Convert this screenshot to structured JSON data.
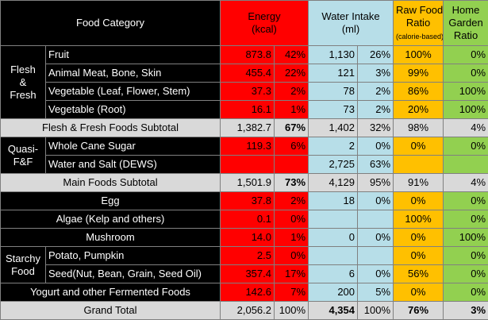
{
  "header": {
    "category": "Food Category",
    "energy_line1": "Energy",
    "energy_line2": "(kcal)",
    "water_line1": "Water Intake",
    "water_line2": "(ml)",
    "raw_line1": "Raw Food",
    "raw_line2": "Ratio",
    "raw_line3": "(calorie-based)",
    "home_line1": "Home",
    "home_line2": "Garden",
    "home_line3": "Ratio"
  },
  "groups": {
    "flesh_line1": "Flesh",
    "flesh_line2": "&",
    "flesh_line3": "Fresh",
    "quasi_line1": "Quasi-",
    "quasi_line2": "F&F",
    "starchy_line1": "Starchy",
    "starchy_line2": "Food"
  },
  "rows": {
    "fruit": {
      "name": "Fruit",
      "energy": "873.8",
      "energy_pct": "42%",
      "water": "1,130",
      "water_pct": "26%",
      "raw": "100%",
      "home": "0%"
    },
    "animal": {
      "name": "Animal Meat, Bone, Skin",
      "energy": "455.4",
      "energy_pct": "22%",
      "water": "121",
      "water_pct": "3%",
      "raw": "99%",
      "home": "0%"
    },
    "veg_leaf": {
      "name": "Vegetable (Leaf, Flower, Stem)",
      "energy": "37.3",
      "energy_pct": "2%",
      "water": "78",
      "water_pct": "2%",
      "raw": "86%",
      "home": "100%"
    },
    "veg_root": {
      "name": "Vegetable (Root)",
      "energy": "16.1",
      "energy_pct": "1%",
      "water": "73",
      "water_pct": "2%",
      "raw": "20%",
      "home": "100%"
    },
    "ff_subtotal": {
      "name": "Flesh & Fresh Foods Subtotal",
      "energy": "1,382.7",
      "energy_pct": "67%",
      "water": "1,402",
      "water_pct": "32%",
      "raw": "98%",
      "home": "4%"
    },
    "sugar": {
      "name": "Whole Cane Sugar",
      "energy": "119.3",
      "energy_pct": "6%",
      "water": "2",
      "water_pct": "0%",
      "raw": "0%",
      "home": "0%"
    },
    "water_salt": {
      "name": "Water and Salt (DEWS)",
      "water": "2,725",
      "water_pct": "63%"
    },
    "main_subtotal": {
      "name": "Main Foods Subtotal",
      "energy": "1,501.9",
      "energy_pct": "73%",
      "water": "4,129",
      "water_pct": "95%",
      "raw": "91%",
      "home": "4%"
    },
    "egg": {
      "name": "Egg",
      "energy": "37.8",
      "energy_pct": "2%",
      "water": "18",
      "water_pct": "0%",
      "raw": "0%",
      "home": "0%"
    },
    "algae": {
      "name": "Algae (Kelp and others)",
      "energy": "0.1",
      "energy_pct": "0%",
      "raw": "100%",
      "home": "0%"
    },
    "mushroom": {
      "name": "Mushroom",
      "energy": "14.0",
      "energy_pct": "1%",
      "water": "0",
      "water_pct": "0%",
      "raw": "0%",
      "home": "100%"
    },
    "potato": {
      "name": "Potato, Pumpkin",
      "energy": "2.5",
      "energy_pct": "0%",
      "raw": "0%",
      "home": "0%"
    },
    "seed": {
      "name": "Seed(Nut, Bean, Grain, Seed Oil)",
      "energy": "357.4",
      "energy_pct": "17%",
      "water": "6",
      "water_pct": "0%",
      "raw": "56%",
      "home": "0%"
    },
    "yogurt": {
      "name": "Yogurt and other Fermented Foods",
      "energy": "142.6",
      "energy_pct": "7%",
      "water": "200",
      "water_pct": "5%",
      "raw": "0%",
      "home": "0%"
    },
    "grand_total": {
      "name": "Grand Total",
      "energy": "2,056.2",
      "energy_pct": "100%",
      "water": "4,354",
      "water_pct": "100%",
      "raw": "76%",
      "home": "3%"
    }
  }
}
